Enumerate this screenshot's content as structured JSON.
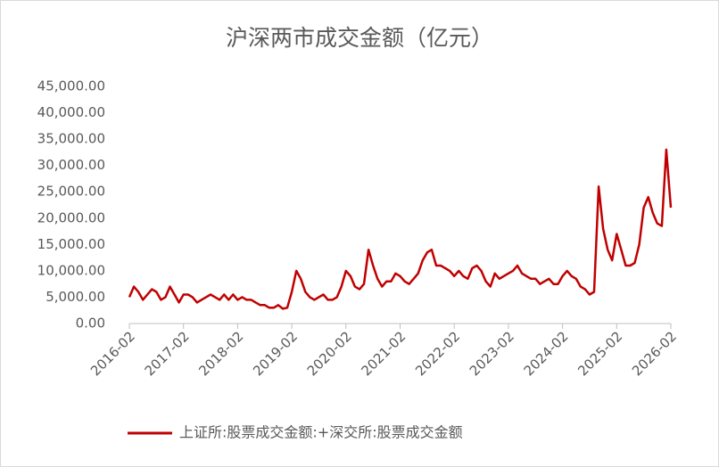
{
  "chart_data": {
    "type": "line",
    "title": "沪深两市成交金额（亿元）",
    "x": [
      "2016-02",
      "2016-03",
      "2016-04",
      "2016-05",
      "2016-06",
      "2016-07",
      "2016-08",
      "2016-09",
      "2016-10",
      "2016-11",
      "2016-12",
      "2017-01",
      "2017-02",
      "2017-03",
      "2017-04",
      "2017-05",
      "2017-06",
      "2017-07",
      "2017-08",
      "2017-09",
      "2017-10",
      "2017-11",
      "2017-12",
      "2018-01",
      "2018-02",
      "2018-03",
      "2018-04",
      "2018-05",
      "2018-06",
      "2018-07",
      "2018-08",
      "2018-09",
      "2018-10",
      "2018-11",
      "2018-12",
      "2019-01",
      "2019-02",
      "2019-03",
      "2019-04",
      "2019-05",
      "2019-06",
      "2019-07",
      "2019-08",
      "2019-09",
      "2019-10",
      "2019-11",
      "2019-12",
      "2020-01",
      "2020-02",
      "2020-03",
      "2020-04",
      "2020-05",
      "2020-06",
      "2020-07",
      "2020-08",
      "2020-09",
      "2020-10",
      "2020-11",
      "2020-12",
      "2021-01",
      "2021-02",
      "2021-03",
      "2021-04",
      "2021-05",
      "2021-06",
      "2021-07",
      "2021-08",
      "2021-09",
      "2021-10",
      "2021-11",
      "2021-12",
      "2022-01",
      "2022-02",
      "2022-03",
      "2022-04",
      "2022-05",
      "2022-06",
      "2022-07",
      "2022-08",
      "2022-09",
      "2022-10",
      "2022-11",
      "2022-12",
      "2023-01",
      "2023-02",
      "2023-03",
      "2023-04",
      "2023-05",
      "2023-06",
      "2023-07",
      "2023-08",
      "2023-09",
      "2023-10",
      "2023-11",
      "2023-12",
      "2024-01",
      "2024-02",
      "2024-03",
      "2024-04",
      "2024-05",
      "2024-06",
      "2024-07",
      "2024-08",
      "2024-09",
      "2024-10",
      "2024-11",
      "2024-12",
      "2025-01",
      "2025-02",
      "2025-03",
      "2025-04",
      "2025-05",
      "2025-06",
      "2025-07",
      "2025-08",
      "2025-09",
      "2025-10",
      "2025-11",
      "2025-12",
      "2026-01",
      "2026-02"
    ],
    "series": [
      {
        "name": "上证所:股票成交金额:+深交所:股票成交金额",
        "color": "#c00000",
        "values": [
          5000,
          7000,
          6000,
          4500,
          5500,
          6500,
          6000,
          4500,
          5000,
          7000,
          5500,
          4000,
          5500,
          5500,
          5000,
          4000,
          4500,
          5000,
          5500,
          5000,
          4500,
          5500,
          4500,
          5500,
          4500,
          5000,
          4500,
          4500,
          4000,
          3500,
          3500,
          3000,
          3000,
          3500,
          2800,
          3000,
          6000,
          10000,
          8500,
          6000,
          5000,
          4500,
          5000,
          5500,
          4500,
          4500,
          5000,
          7000,
          10000,
          9000,
          7000,
          6500,
          7500,
          14000,
          11000,
          8500,
          7000,
          8000,
          8000,
          9500,
          9000,
          8000,
          7500,
          8500,
          9500,
          12000,
          13500,
          14000,
          11000,
          11000,
          10500,
          10000,
          9000,
          10000,
          9000,
          8500,
          10500,
          11000,
          10000,
          8000,
          7000,
          9500,
          8500,
          9000,
          9500,
          10000,
          11000,
          9500,
          9000,
          8500,
          8500,
          7500,
          8000,
          8500,
          7500,
          7500,
          9000,
          10000,
          9000,
          8500,
          7000,
          6500,
          5500,
          6000,
          26000,
          18000,
          14000,
          12000,
          17000,
          14000,
          11000,
          11000,
          11500,
          15000,
          22000,
          24000,
          21000,
          19000,
          18500,
          33000,
          22000
        ]
      }
    ],
    "ylim": [
      0,
      45000
    ],
    "yticks": [
      {
        "value": 0,
        "label": "0.00"
      },
      {
        "value": 5000,
        "label": "5,000.00"
      },
      {
        "value": 10000,
        "label": "10,000.00"
      },
      {
        "value": 15000,
        "label": "15,000.00"
      },
      {
        "value": 20000,
        "label": "20,000.00"
      },
      {
        "value": 25000,
        "label": "25,000.00"
      },
      {
        "value": 30000,
        "label": "30,000.00"
      },
      {
        "value": 35000,
        "label": "35,000.00"
      },
      {
        "value": 40000,
        "label": "40,000.00"
      },
      {
        "value": 45000,
        "label": "45,000.00"
      }
    ],
    "grid": false
  }
}
